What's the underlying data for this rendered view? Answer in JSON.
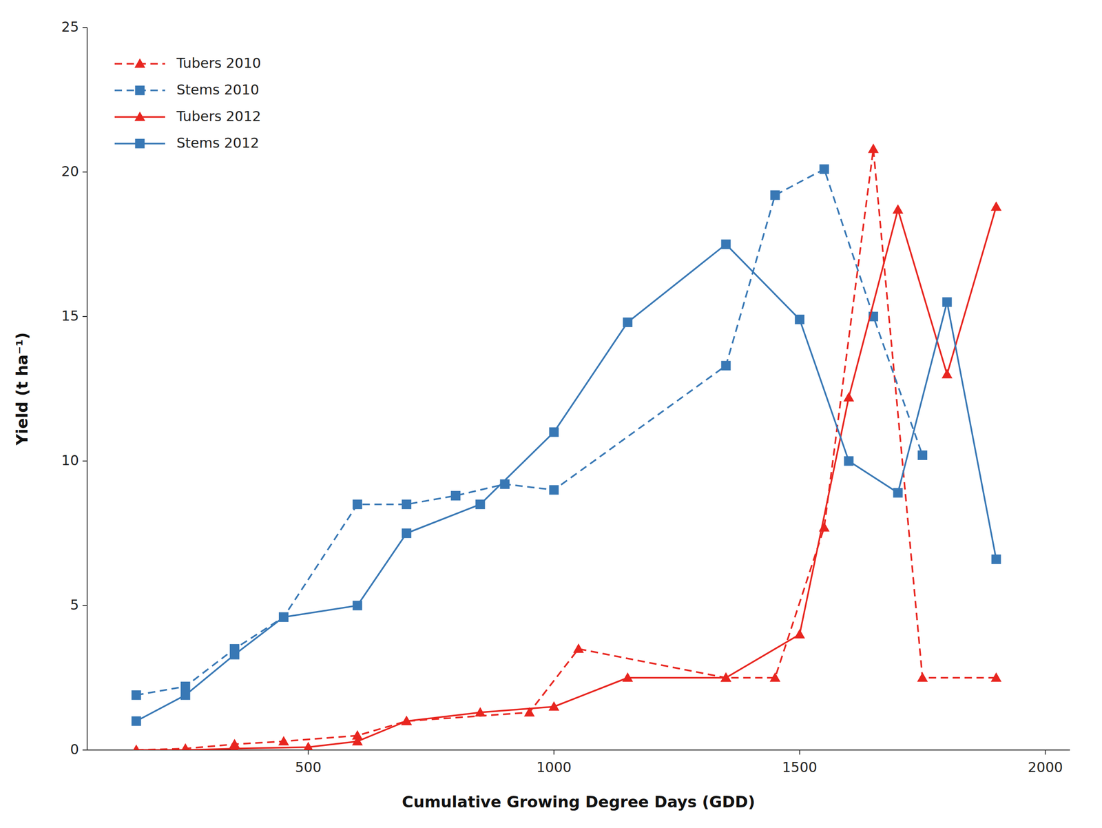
{
  "chart_data": {
    "type": "line",
    "xlabel": "Cumulative Growing Degree Days (GDD)",
    "ylabel": "Yield (t ha⁻¹)",
    "series": [
      {
        "name": "Tubers 2010",
        "color": "#e8251f",
        "line_style": "dashed",
        "marker": "triangle",
        "x": [
          150,
          250,
          350,
          450,
          600,
          700,
          950,
          1050,
          1350,
          1450,
          1550,
          1650,
          1750,
          1900
        ],
        "values": [
          0.0,
          0.05,
          0.2,
          0.3,
          0.5,
          1.0,
          1.3,
          3.5,
          2.5,
          2.5,
          7.7,
          20.8,
          2.5,
          2.5
        ]
      },
      {
        "name": "Stems 2010",
        "color": "#3878b5",
        "line_style": "dashed",
        "marker": "square",
        "x": [
          150,
          250,
          350,
          450,
          600,
          700,
          800,
          900,
          1000,
          1350,
          1450,
          1550,
          1650,
          1750
        ],
        "values": [
          1.9,
          2.2,
          3.5,
          4.6,
          8.5,
          8.5,
          8.8,
          9.2,
          9.0,
          13.3,
          19.2,
          20.1,
          15.0,
          10.2
        ]
      },
      {
        "name": "Tubers 2012",
        "color": "#e8251f",
        "line_style": "solid",
        "marker": "triangle",
        "x": [
          150,
          250,
          350,
          500,
          600,
          700,
          850,
          1000,
          1150,
          1350,
          1500,
          1600,
          1700,
          1800,
          1900
        ],
        "values": [
          0.0,
          0.0,
          0.05,
          0.1,
          0.3,
          1.0,
          1.3,
          1.5,
          2.5,
          2.5,
          4.0,
          12.2,
          18.7,
          13.0,
          18.8
        ]
      },
      {
        "name": "Stems 2012",
        "color": "#3878b5",
        "line_style": "solid",
        "marker": "square",
        "x": [
          150,
          250,
          350,
          450,
          600,
          700,
          850,
          1000,
          1150,
          1350,
          1500,
          1600,
          1700,
          1800,
          1900
        ],
        "values": [
          1.0,
          1.9,
          3.3,
          4.6,
          5.0,
          7.5,
          8.5,
          11.0,
          14.8,
          17.5,
          14.9,
          10.0,
          8.9,
          15.5,
          6.6
        ]
      }
    ],
    "xlim": [
      50,
      2050
    ],
    "ylim": [
      0,
      25
    ],
    "xticks": [
      500,
      1000,
      1500,
      2000
    ],
    "yticks": [
      0,
      5,
      10,
      15,
      20,
      25
    ],
    "legend": "upper left",
    "grid": false
  }
}
